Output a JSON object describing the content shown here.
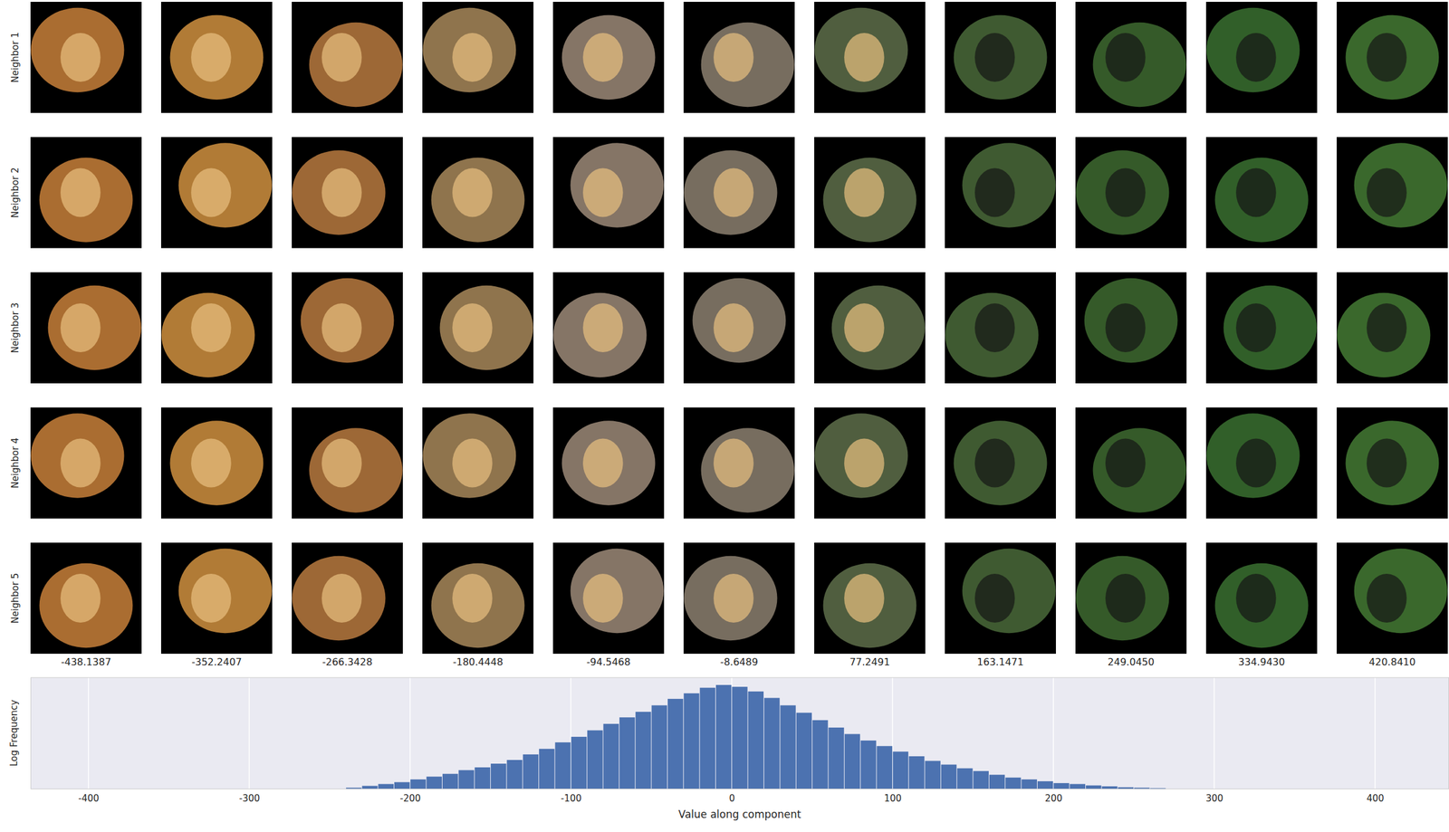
{
  "chart_data": {
    "type": "histogram",
    "xlabel": "Value along component",
    "ylabel": "Log Frequency",
    "bins": [
      -240,
      -230,
      -220,
      -210,
      -200,
      -190,
      -180,
      -170,
      -160,
      -150,
      -140,
      -130,
      -120,
      -110,
      -100,
      -90,
      -80,
      -70,
      -60,
      -50,
      -40,
      -30,
      -20,
      -10,
      0,
      10,
      20,
      30,
      40,
      50,
      60,
      70,
      80,
      90,
      100,
      110,
      120,
      130,
      140,
      150,
      160,
      170,
      180,
      190,
      200,
      210,
      220,
      230,
      240,
      250,
      260,
      270
    ],
    "values": [
      0.1,
      0.3,
      0.5,
      0.7,
      1.0,
      1.3,
      1.6,
      2.0,
      2.3,
      2.7,
      3.1,
      3.7,
      4.3,
      5.0,
      5.6,
      6.3,
      7.0,
      7.7,
      8.3,
      9.0,
      9.7,
      10.3,
      10.9,
      11.2,
      11.0,
      10.5,
      9.8,
      9.0,
      8.2,
      7.4,
      6.6,
      5.9,
      5.2,
      4.6,
      4.0,
      3.5,
      3.0,
      2.6,
      2.2,
      1.9,
      1.5,
      1.2,
      1.0,
      0.8,
      0.6,
      0.5,
      0.35,
      0.25,
      0.15,
      0.1,
      0.05
    ],
    "color": "#4c72b0",
    "xlim": [
      -436,
      446
    ],
    "ylim": [
      0,
      12
    ],
    "xticks": [
      -400,
      -300,
      -200,
      -100,
      0,
      100,
      200,
      300,
      400
    ],
    "grid": true,
    "tick_labels": "x",
    "neighbor_labels": [
      "Neighbor 1",
      "Neighbor 2",
      "Neighbor 3",
      "Neighbor 4",
      "Neighbor 5"
    ],
    "column_values": [
      -438.1387,
      -352.2407,
      -266.3428,
      -180.4448,
      -94.5468,
      -8.6489,
      77.2491,
      163.1471,
      {
        "value": 249.045,
        "label": "249.0450"
      },
      {
        "value": 334.943,
        "label": "334.9430"
      },
      {
        "value": 420.841,
        "label": "420.8410"
      }
    ]
  }
}
